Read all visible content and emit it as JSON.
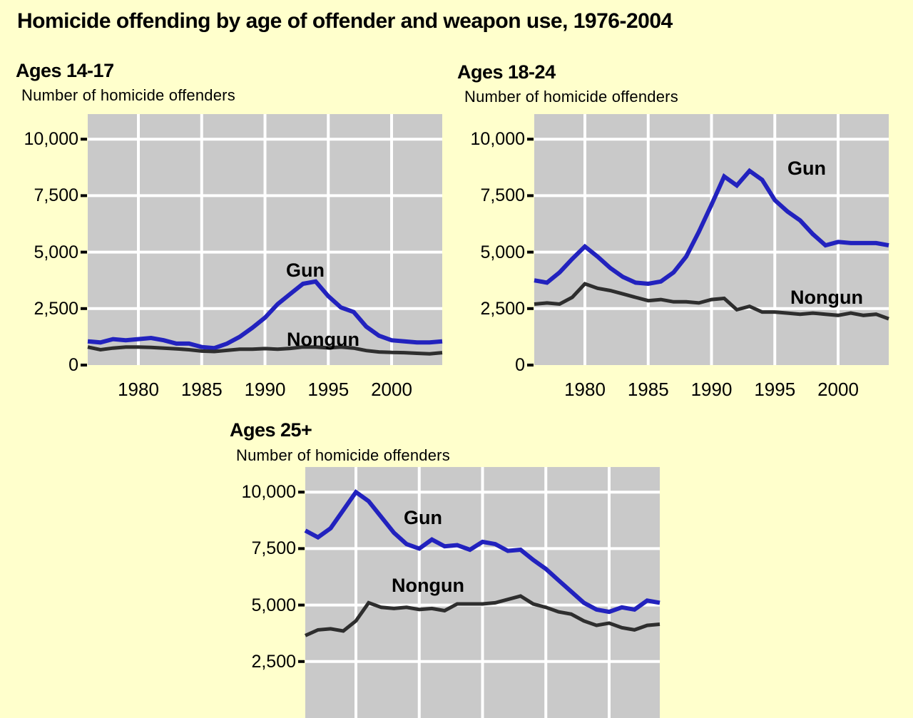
{
  "page": {
    "title": "Homicide offending by age of offender and weapon use, 1976-2004",
    "background_color": "#FFFFCC"
  },
  "colors": {
    "gun_line": "#2222BE",
    "nongun_line": "#2E2E2E",
    "plot_background": "#C9C9C9",
    "gridline": "#FFFFFF",
    "axis_tick": "#000000",
    "text": "#000000"
  },
  "chart_data": [
    {
      "type": "line",
      "title": "Ages 14-17",
      "subtitle": "Number of homicide offenders",
      "xlim": [
        1976,
        2004
      ],
      "ylim": [
        0,
        11100
      ],
      "grid": true,
      "legend": "inline-labels",
      "x": [
        1976,
        1977,
        1978,
        1979,
        1980,
        1981,
        1982,
        1983,
        1984,
        1985,
        1986,
        1987,
        1988,
        1989,
        1990,
        1991,
        1992,
        1993,
        1994,
        1995,
        1996,
        1997,
        1998,
        1999,
        2000,
        2001,
        2002,
        2003,
        2004
      ],
      "x_ticks": [
        1980,
        1985,
        1990,
        1995,
        2000
      ],
      "x_tick_labels": [
        "1980",
        "1985",
        "1990",
        "1995",
        "2000"
      ],
      "y_ticks": [
        0,
        2500,
        5000,
        7500,
        10000
      ],
      "y_tick_labels": [
        "0",
        "2,500",
        "5,000",
        "7,500",
        "10,000"
      ],
      "series": [
        {
          "name": "Gun",
          "color_key": "gun_line",
          "label": {
            "text": "Gun",
            "x": 305,
            "y": 228
          },
          "values": [
            1050,
            1000,
            1150,
            1100,
            1150,
            1200,
            1100,
            950,
            950,
            800,
            750,
            950,
            1250,
            1650,
            2100,
            2700,
            3150,
            3600,
            3700,
            3050,
            2550,
            2350,
            1700,
            1300,
            1100,
            1050,
            1000,
            1000,
            1050
          ]
        },
        {
          "name": "Nongun",
          "color_key": "nongun_line",
          "label": {
            "text": "Nongun",
            "x": 330,
            "y": 325
          },
          "values": [
            800,
            680,
            750,
            800,
            800,
            780,
            750,
            720,
            680,
            620,
            600,
            650,
            700,
            700,
            730,
            700,
            740,
            800,
            800,
            760,
            800,
            750,
            640,
            580,
            560,
            550,
            520,
            500,
            550
          ]
        }
      ]
    },
    {
      "type": "line",
      "title": "Ages 18-24",
      "subtitle": "Number of homicide offenders",
      "xlim": [
        1976,
        2004
      ],
      "ylim": [
        0,
        11100
      ],
      "grid": true,
      "legend": "inline-labels",
      "x": [
        1976,
        1977,
        1978,
        1979,
        1980,
        1981,
        1982,
        1983,
        1984,
        1985,
        1986,
        1987,
        1988,
        1989,
        1990,
        1991,
        1992,
        1993,
        1994,
        1995,
        1996,
        1997,
        1998,
        1999,
        2000,
        2001,
        2002,
        2003,
        2004
      ],
      "x_ticks": [
        1980,
        1985,
        1990,
        1995,
        2000
      ],
      "x_tick_labels": [
        "1980",
        "1985",
        "1990",
        "1995",
        "2000"
      ],
      "y_ticks": [
        0,
        2500,
        5000,
        7500,
        10000
      ],
      "y_tick_labels": [
        "0",
        "2,500",
        "5,000",
        "7,500",
        "10,000"
      ],
      "series": [
        {
          "name": "Gun",
          "color_key": "gun_line",
          "label": {
            "text": "Gun",
            "x": 382,
            "y": 85
          },
          "values": [
            3750,
            3650,
            4100,
            4700,
            5250,
            4800,
            4300,
            3900,
            3650,
            3600,
            3700,
            4100,
            4800,
            5900,
            7100,
            8350,
            7950,
            8600,
            8200,
            7300,
            6800,
            6400,
            5800,
            5300,
            5450,
            5400,
            5400,
            5400,
            5300
          ]
        },
        {
          "name": "Nongun",
          "color_key": "nongun_line",
          "label": {
            "text": "Nongun",
            "x": 410,
            "y": 266
          },
          "values": [
            2700,
            2750,
            2700,
            3000,
            3600,
            3400,
            3300,
            3150,
            3000,
            2850,
            2900,
            2800,
            2800,
            2750,
            2900,
            2950,
            2450,
            2600,
            2350,
            2350,
            2300,
            2250,
            2300,
            2250,
            2200,
            2300,
            2200,
            2250,
            2050
          ]
        }
      ]
    },
    {
      "type": "line",
      "title": "Ages 25+",
      "subtitle": "Number of homicide offenders",
      "xlim": [
        1976,
        2004
      ],
      "ylim": [
        0,
        11100
      ],
      "grid": true,
      "legend": "inline-labels",
      "clipped_bottom": true,
      "x": [
        1976,
        1977,
        1978,
        1979,
        1980,
        1981,
        1982,
        1983,
        1984,
        1985,
        1986,
        1987,
        1988,
        1989,
        1990,
        1991,
        1992,
        1993,
        1994,
        1995,
        1996,
        1997,
        1998,
        1999,
        2000,
        2001,
        2002,
        2003,
        2004
      ],
      "x_ticks": [
        1980,
        1985,
        1990,
        1995,
        2000
      ],
      "x_tick_labels": [],
      "y_ticks": [
        2500,
        5000,
        7500,
        10000
      ],
      "y_tick_labels": [
        "2,500",
        "5,000",
        "7,500",
        "10,000"
      ],
      "series": [
        {
          "name": "Gun",
          "color_key": "gun_line",
          "label": {
            "text": "Gun",
            "x": 165,
            "y": 80
          },
          "values": [
            8300,
            8000,
            8400,
            9200,
            10000,
            9600,
            8900,
            8200,
            7700,
            7500,
            7900,
            7600,
            7650,
            7450,
            7800,
            7700,
            7400,
            7450,
            7000,
            6600,
            6100,
            5600,
            5100,
            4800,
            4700,
            4900,
            4800,
            5200,
            5100
          ]
        },
        {
          "name": "Nongun",
          "color_key": "nongun_line",
          "label": {
            "text": "Nongun",
            "x": 172,
            "y": 175
          },
          "values": [
            3650,
            3900,
            3950,
            3850,
            4300,
            5100,
            4900,
            4850,
            4900,
            4800,
            4850,
            4750,
            5050,
            5050,
            5050,
            5100,
            5250,
            5400,
            5050,
            4900,
            4700,
            4600,
            4300,
            4100,
            4200,
            4000,
            3900,
            4100,
            4150
          ]
        }
      ]
    }
  ]
}
